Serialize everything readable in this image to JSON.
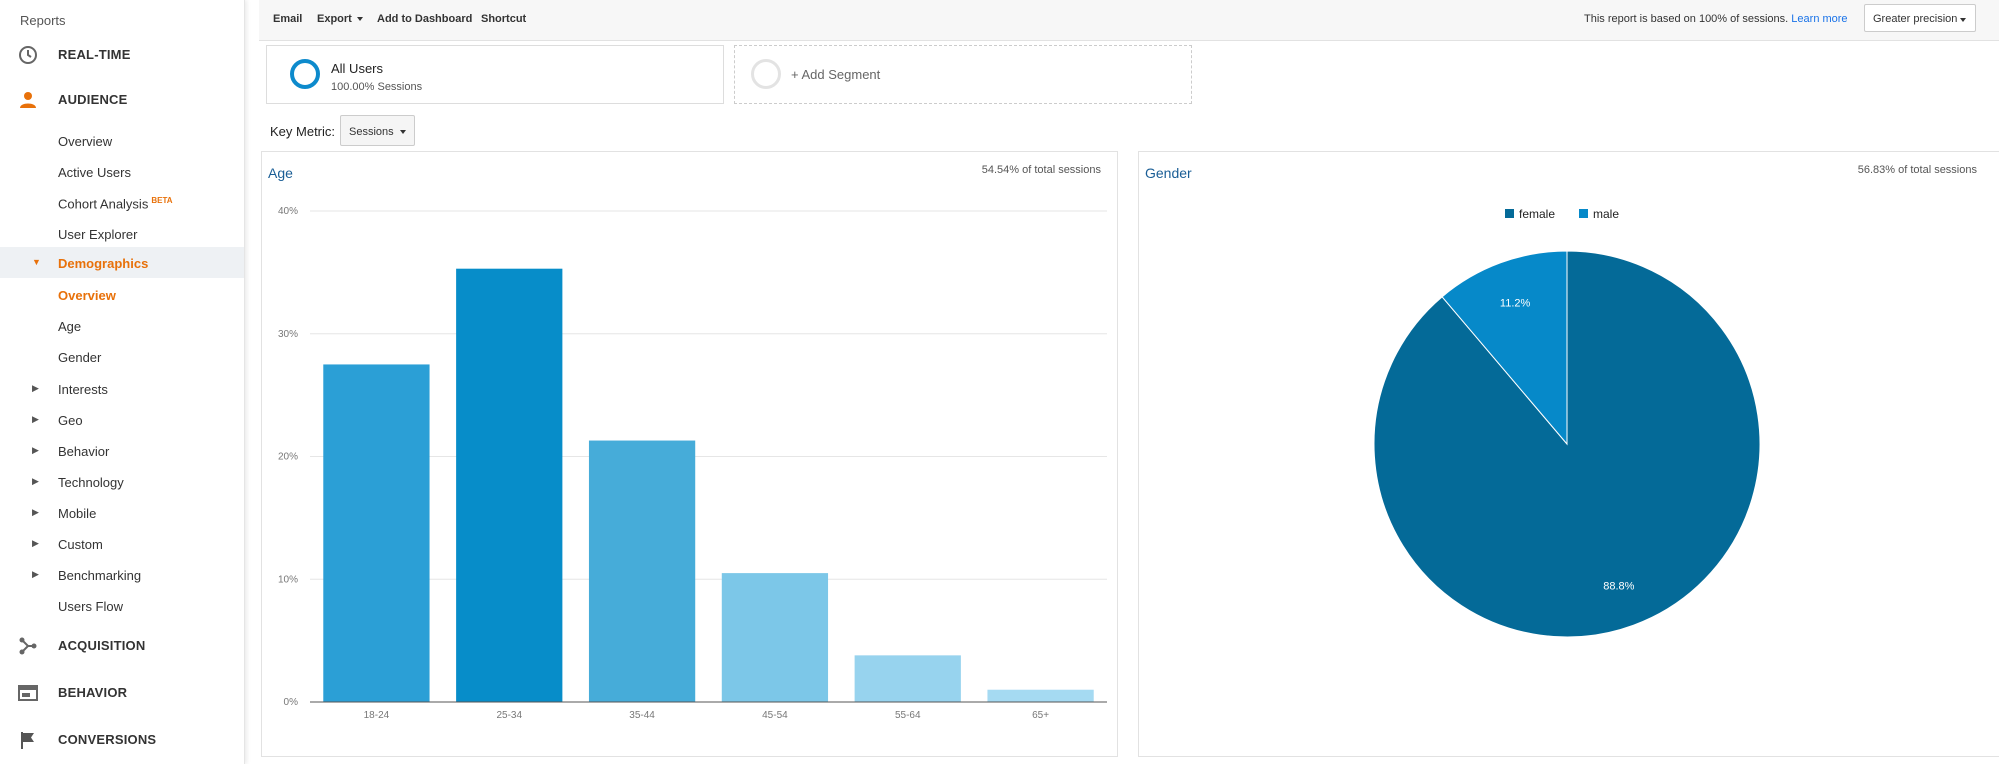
{
  "sidebar": {
    "reports_label": "Reports",
    "realtime_label": "REAL-TIME",
    "audience_label": "AUDIENCE",
    "audience_items": [
      "Overview",
      "Active Users",
      "Cohort Analysis",
      "User Explorer"
    ],
    "beta_label": "BETA",
    "demographics_label": "Demographics",
    "demographics_items": [
      "Overview",
      "Age",
      "Gender"
    ],
    "collapsed_items": [
      "Interests",
      "Geo",
      "Behavior",
      "Technology",
      "Mobile",
      "Custom",
      "Benchmarking"
    ],
    "users_flow_label": "Users Flow",
    "acquisition_label": "ACQUISITION",
    "behavior_label": "BEHAVIOR",
    "conversions_label": "CONVERSIONS",
    "accent_color": "#e8710a"
  },
  "toolbar": {
    "email_label": "Email",
    "export_label": "Export",
    "add_dashboard_label": "Add to Dashboard",
    "shortcut_label": "Shortcut",
    "info_text": "This report is based on 100% of sessions.",
    "learn_more_label": "Learn more",
    "precision_label": "Greater precision"
  },
  "segments": {
    "all_users_name": "All Users",
    "all_users_sub": "100.00% Sessions",
    "add_segment_label": "+ Add Segment"
  },
  "key_metric": {
    "label": "Key Metric:",
    "value": "Sessions"
  },
  "age_panel": {
    "title": "Age",
    "note": "54.54% of total sessions"
  },
  "gender_panel": {
    "title": "Gender",
    "note": "56.83% of total sessions"
  },
  "chart_data": [
    {
      "type": "bar",
      "title": "Age",
      "categories": [
        "18-24",
        "25-34",
        "35-44",
        "45-54",
        "55-64",
        "65+"
      ],
      "values": [
        27.5,
        35.3,
        21.3,
        10.5,
        3.8,
        1.0
      ],
      "colors": [
        "#2b9fd6",
        "#078dc9",
        "#46acd9",
        "#7cc7e8",
        "#97d3ee",
        "#a5daf2"
      ],
      "yticks": [
        "0%",
        "10%",
        "20%",
        "30%",
        "40%"
      ],
      "ylim": [
        0,
        40
      ],
      "grid": true
    },
    {
      "type": "pie",
      "title": "Gender",
      "labels": [
        "female",
        "male"
      ],
      "values": [
        88.8,
        11.2
      ],
      "value_labels": [
        "88.8%",
        "11.2%"
      ],
      "colors": [
        "#046a98",
        "#0689c9"
      ],
      "legend": "top"
    }
  ]
}
